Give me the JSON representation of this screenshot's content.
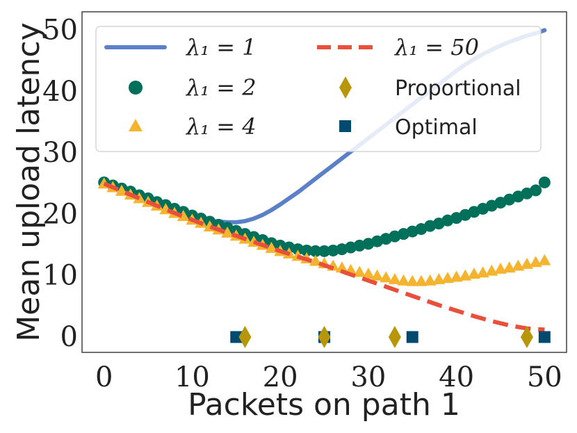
{
  "chart_data": {
    "type": "line",
    "xlabel": "Packets on path 1",
    "ylabel": "Mean upload latency",
    "xlim": [
      -2.5,
      52.5
    ],
    "ylim": [
      -2.5,
      53
    ],
    "xticks": [
      0,
      10,
      20,
      30,
      40,
      50
    ],
    "yticks": [
      0,
      10,
      20,
      30,
      40,
      50
    ],
    "grid": false,
    "legend_position": "top",
    "colors": {
      "lambda1": "#5a80c8",
      "lambda2": "#00705a",
      "lambda4": "#f5b430",
      "lambda50": "#e8503c",
      "proportional": "#b8960a",
      "optimal": "#004a70"
    },
    "series": [
      {
        "key": "lambda1",
        "name": "λ₁ = 1",
        "style": "solid-line",
        "x": [
          0,
          2,
          4,
          6,
          8,
          10,
          12,
          14,
          15,
          16,
          17,
          18,
          19,
          20,
          21,
          22,
          23,
          24,
          25,
          26,
          27,
          28,
          29,
          30,
          31,
          32,
          33,
          34,
          35,
          36,
          37,
          38,
          39,
          40,
          41,
          42,
          43,
          44,
          45,
          46,
          47,
          48,
          49,
          50
        ],
        "y": [
          25.2,
          24.0,
          22.8,
          21.7,
          20.6,
          19.6,
          18.9,
          18.7,
          18.7,
          18.9,
          19.3,
          19.9,
          20.7,
          21.6,
          22.6,
          23.6,
          24.7,
          25.8,
          26.9,
          28.0,
          29.1,
          30.2,
          31.3,
          32.4,
          33.5,
          34.6,
          35.7,
          36.8,
          37.9,
          39.0,
          40.1,
          41.2,
          42.3,
          43.4,
          44.4,
          45.3,
          46.1,
          46.8,
          47.5,
          48.1,
          48.6,
          49.1,
          49.5,
          50.0
        ]
      },
      {
        "key": "lambda2",
        "name": "λ₁ = 2",
        "style": "circle-markers",
        "x": [
          0,
          1,
          2,
          3,
          4,
          5,
          6,
          7,
          8,
          9,
          10,
          11,
          12,
          13,
          14,
          15,
          16,
          17,
          18,
          19,
          20,
          21,
          22,
          23,
          24,
          25,
          26,
          27,
          28,
          29,
          30,
          31,
          32,
          33,
          34,
          35,
          36,
          37,
          38,
          39,
          40,
          41,
          42,
          43,
          44,
          45,
          46,
          47,
          48,
          49,
          50
        ],
        "y": [
          25.2,
          24.7,
          24.2,
          23.7,
          23.1,
          22.6,
          22.0,
          21.5,
          20.9,
          20.4,
          19.8,
          19.3,
          18.8,
          18.3,
          17.8,
          17.3,
          16.8,
          16.3,
          15.8,
          15.3,
          14.9,
          14.6,
          14.3,
          14.1,
          14.0,
          14.0,
          14.1,
          14.3,
          14.6,
          14.9,
          15.2,
          15.6,
          16.0,
          16.4,
          16.8,
          17.2,
          17.6,
          18.1,
          18.5,
          19.0,
          19.4,
          19.9,
          20.4,
          20.9,
          21.4,
          21.9,
          22.4,
          22.9,
          23.4,
          23.9,
          25.2
        ]
      },
      {
        "key": "lambda4",
        "name": "λ₁ = 4",
        "style": "triangle-markers",
        "x": [
          0,
          1,
          2,
          3,
          4,
          5,
          6,
          7,
          8,
          9,
          10,
          11,
          12,
          13,
          14,
          15,
          16,
          17,
          18,
          19,
          20,
          21,
          22,
          23,
          24,
          25,
          26,
          27,
          28,
          29,
          30,
          31,
          32,
          33,
          34,
          35,
          36,
          37,
          38,
          39,
          40,
          41,
          42,
          43,
          44,
          45,
          46,
          47,
          48,
          49,
          50
        ],
        "y": [
          25.0,
          24.4,
          23.8,
          23.2,
          22.6,
          22.0,
          21.4,
          20.8,
          20.2,
          19.7,
          19.1,
          18.6,
          18.0,
          17.5,
          17.0,
          16.5,
          16.0,
          15.5,
          15.0,
          14.5,
          14.0,
          13.6,
          13.2,
          12.8,
          12.4,
          12.0,
          11.6,
          11.3,
          10.9,
          10.6,
          10.3,
          10.0,
          9.7,
          9.4,
          9.2,
          9.1,
          9.1,
          9.2,
          9.4,
          9.6,
          9.8,
          10.0,
          10.3,
          10.5,
          10.8,
          11.1,
          11.3,
          11.6,
          11.9,
          12.2,
          12.5
        ]
      },
      {
        "key": "lambda50",
        "name": "λ₁ = 50",
        "style": "dashed-line",
        "x": [
          0,
          2,
          4,
          6,
          8,
          10,
          12,
          14,
          16,
          18,
          20,
          22,
          24,
          26,
          28,
          30,
          32,
          34,
          36,
          38,
          40,
          42,
          44,
          46,
          48,
          49,
          50
        ],
        "y": [
          25.0,
          23.8,
          22.6,
          21.4,
          20.2,
          19.1,
          18.0,
          17.0,
          16.0,
          15.0,
          14.0,
          13.1,
          12.2,
          11.2,
          10.2,
          9.2,
          8.2,
          7.2,
          6.2,
          5.2,
          4.3,
          3.4,
          2.6,
          1.9,
          1.4,
          1.3,
          1.2
        ]
      }
    ],
    "markers": {
      "proportional": {
        "name": "Proportional",
        "x": [
          16,
          25,
          33,
          48
        ],
        "y": [
          0,
          0,
          0,
          0
        ]
      },
      "optimal": {
        "name": "Optimal",
        "x": [
          15,
          25,
          35,
          50
        ],
        "y": [
          0,
          0,
          0,
          0
        ]
      }
    }
  },
  "legend": {
    "items": [
      {
        "key": "lambda1",
        "label": "λ₁ = 1"
      },
      {
        "key": "lambda50",
        "label": "λ₁ = 50"
      },
      {
        "key": "lambda2",
        "label": "λ₁ = 2"
      },
      {
        "key": "proportional",
        "label": "Proportional"
      },
      {
        "key": "lambda4",
        "label": "λ₁ = 4"
      },
      {
        "key": "optimal",
        "label": "Optimal"
      }
    ]
  }
}
